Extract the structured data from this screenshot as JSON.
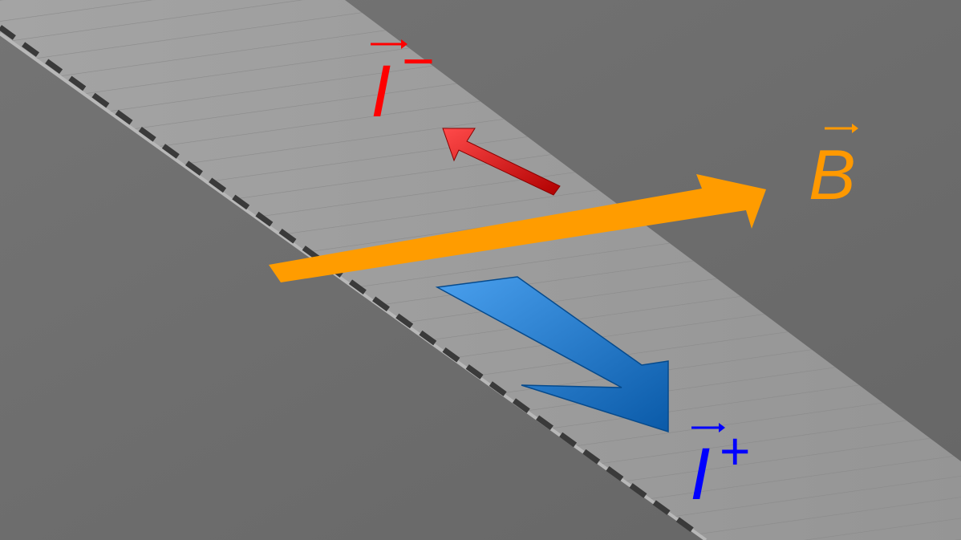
{
  "labels": {
    "current_minus": {
      "symbol": "I",
      "sign": "−",
      "color": "#ff0000"
    },
    "field": {
      "symbol": "B",
      "color": "#ff9900"
    },
    "current_plus": {
      "symbol": "I",
      "sign": "+",
      "color": "#0000ff"
    }
  },
  "colors": {
    "background": "#6f6f6f",
    "strip": "#9c9c9c",
    "red_arrow": "#e31010",
    "orange_arrow": "#ff9c00",
    "blue_arrow": "#1a72c8"
  }
}
